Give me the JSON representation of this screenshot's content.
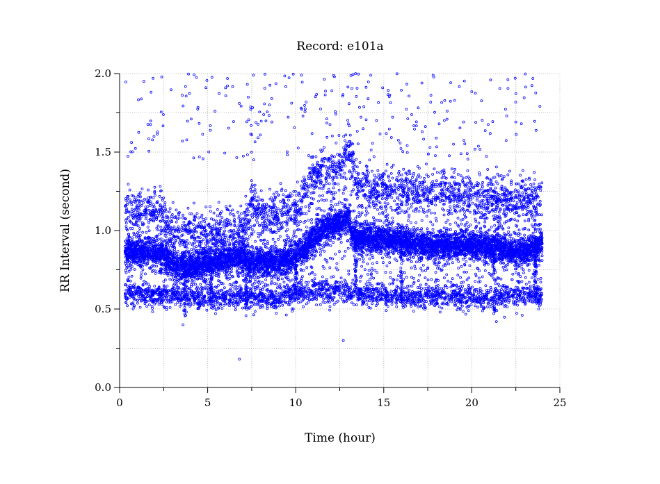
{
  "chart_data": {
    "type": "scatter",
    "title": "Record:  e101a",
    "xlabel": "Time (hour)",
    "ylabel": "RR Interval (second)",
    "xlim": [
      0,
      25
    ],
    "ylim": [
      0.0,
      2.0
    ],
    "x_ticks": [
      "0",
      "5",
      "10",
      "15",
      "20",
      "25"
    ],
    "y_ticks": [
      "0.0",
      "0.5",
      "1.0",
      "1.5",
      "2.0"
    ],
    "x_minor_ticks": [
      2.5,
      7.5,
      12.5,
      17.5,
      22.5
    ],
    "y_minor_ticks": [
      0.25,
      0.75,
      1.25,
      1.75
    ],
    "grid": true,
    "marker_color": "#0000ff",
    "marker": "open-circle",
    "data_time_range": [
      0.3,
      24.0
    ],
    "main_band_profile": {
      "description_source": "estimated from visible dense band of points",
      "x": [
        0.3,
        1.0,
        2.0,
        2.5,
        3.0,
        3.5,
        4.0,
        5.0,
        6.0,
        7.0,
        7.5,
        8.0,
        9.0,
        9.5,
        10.0,
        10.5,
        11.0,
        11.5,
        12.0,
        12.5,
        13.0,
        13.2,
        13.5,
        14.0,
        15.0,
        16.0,
        17.0,
        17.5,
        18.0,
        19.0,
        20.0,
        21.0,
        22.0,
        22.5,
        23.0,
        24.0
      ],
      "y": [
        0.86,
        0.87,
        0.86,
        0.84,
        0.8,
        0.77,
        0.76,
        0.8,
        0.82,
        0.83,
        0.8,
        0.8,
        0.8,
        0.82,
        0.84,
        0.88,
        0.95,
        1.0,
        1.03,
        1.05,
        1.08,
        0.98,
        0.95,
        0.95,
        0.95,
        0.93,
        0.91,
        0.9,
        0.91,
        0.9,
        0.91,
        0.9,
        0.88,
        0.86,
        0.87,
        0.92
      ]
    },
    "upper_band_profile": {
      "x": [
        0.3,
        2.0,
        2.5,
        3.0,
        5.0,
        7.0,
        7.5,
        8.0,
        10.0,
        11.0,
        11.5,
        12.0,
        12.5,
        13.0,
        13.5,
        15.0,
        17.0,
        18.0,
        20.0,
        22.0,
        24.0
      ],
      "y": [
        1.12,
        1.14,
        1.1,
        1.0,
        1.0,
        1.0,
        1.2,
        1.1,
        1.15,
        1.35,
        1.4,
        1.38,
        1.42,
        1.52,
        1.28,
        1.27,
        1.25,
        1.25,
        1.24,
        1.2,
        1.22
      ]
    },
    "lower_band_profile": {
      "x": [
        0.3,
        3.0,
        5.0,
        7.0,
        9.0,
        10.0,
        12.0,
        13.0,
        15.0,
        18.0,
        20.0,
        24.0
      ],
      "y": [
        0.6,
        0.58,
        0.56,
        0.58,
        0.56,
        0.6,
        0.62,
        0.61,
        0.58,
        0.58,
        0.57,
        0.58
      ]
    },
    "dips": [
      {
        "x": 3.7,
        "y": 0.45
      },
      {
        "x": 5.2,
        "y": 0.55
      },
      {
        "x": 7.2,
        "y": 0.5
      },
      {
        "x": 10.0,
        "y": 0.55
      },
      {
        "x": 13.4,
        "y": 0.65
      },
      {
        "x": 16.0,
        "y": 0.55
      },
      {
        "x": 21.3,
        "y": 0.48
      },
      {
        "x": 23.6,
        "y": 0.55
      }
    ],
    "outliers": [
      {
        "x": 6.8,
        "y": 0.18
      },
      {
        "x": 12.7,
        "y": 0.3
      },
      {
        "x": 21.4,
        "y": 0.42
      },
      {
        "x": 3.6,
        "y": 0.4
      },
      {
        "x": 7.6,
        "y": 1.99
      },
      {
        "x": 12.2,
        "y": 1.98
      },
      {
        "x": 13.4,
        "y": 2.0
      },
      {
        "x": 17.8,
        "y": 1.99
      },
      {
        "x": 1.9,
        "y": 1.97
      },
      {
        "x": 4.9,
        "y": 1.91
      },
      {
        "x": 6.8,
        "y": 1.81
      },
      {
        "x": 10.3,
        "y": 1.78
      }
    ]
  }
}
